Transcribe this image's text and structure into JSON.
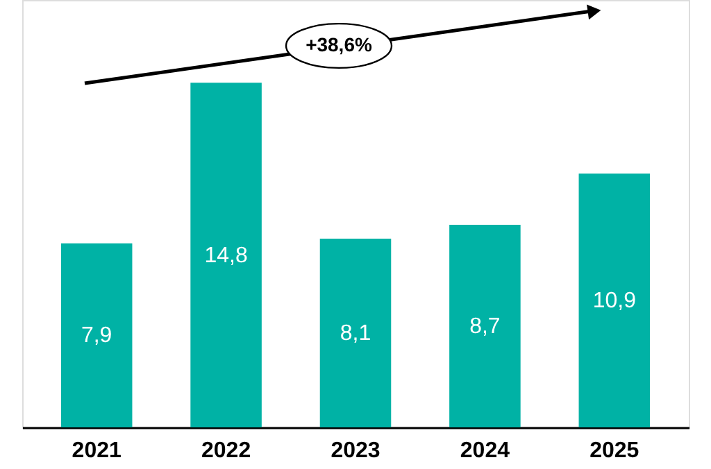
{
  "chart_data": {
    "type": "bar",
    "categories": [
      "2021",
      "2022",
      "2023",
      "2024",
      "2025"
    ],
    "values": [
      7.9,
      14.8,
      8.1,
      8.7,
      10.9
    ],
    "value_labels": [
      "7,9",
      "14,8",
      "8,1",
      "8,7",
      "10,9"
    ],
    "color": "#00b2a5",
    "annotations": [
      "+38,6%"
    ],
    "grid": false
  }
}
